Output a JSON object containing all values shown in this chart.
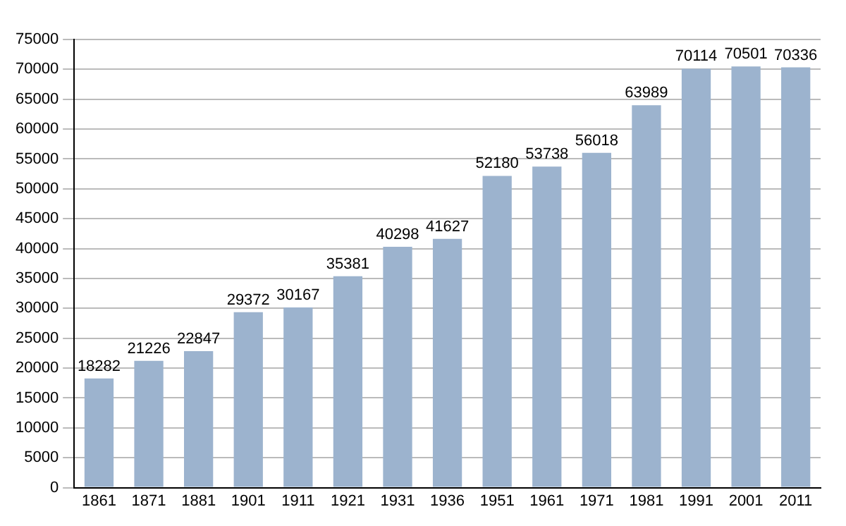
{
  "chart_data": {
    "type": "bar",
    "categories": [
      "1861",
      "1871",
      "1881",
      "1901",
      "1911",
      "1921",
      "1931",
      "1936",
      "1951",
      "1961",
      "1971",
      "1981",
      "1991",
      "2001",
      "2011"
    ],
    "values": [
      18282,
      21226,
      22847,
      29372,
      30167,
      35381,
      40298,
      41627,
      52180,
      53738,
      56018,
      63989,
      70114,
      70501,
      70336
    ],
    "color": "#9cb3ce",
    "ylim": [
      0,
      75000
    ],
    "yticks": [
      0,
      5000,
      10000,
      15000,
      20000,
      25000,
      30000,
      35000,
      40000,
      45000,
      50000,
      55000,
      60000,
      65000,
      70000,
      75000
    ],
    "grid": "y",
    "data_labels": true
  }
}
